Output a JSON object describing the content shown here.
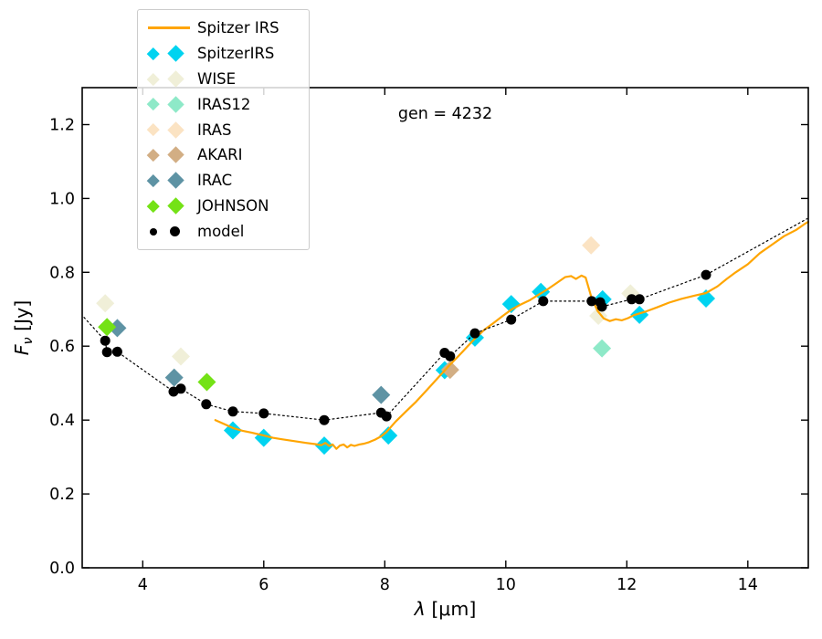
{
  "figure": {
    "annotation": "gen = 4232",
    "background": "#ffffff"
  },
  "axes": {
    "xlabel": {
      "symbol": "λ",
      "unit": " [μm]"
    },
    "ylabel": {
      "symbol": "F",
      "subscript": "ν",
      "unit": " [Jy]"
    },
    "xlim": [
      3,
      15
    ],
    "ylim": [
      0,
      1.3
    ],
    "xticks": [
      4,
      6,
      8,
      10,
      12,
      14
    ],
    "yticks": [
      0,
      0.2,
      0.4,
      0.6,
      0.8,
      1.0,
      1.2
    ],
    "ytick_labels": [
      "0.0",
      "0.2",
      "0.4",
      "0.6",
      "0.8",
      "1.0",
      "1.2"
    ]
  },
  "legend": {
    "items": [
      {
        "label": "Spitzer IRS",
        "marker": "line",
        "color": "#FFA500"
      },
      {
        "label": "SpitzerIRS",
        "marker": "diamond",
        "color": "#00D3F0"
      },
      {
        "label": "WISE",
        "marker": "diamond",
        "color": "#F0EFD8"
      },
      {
        "label": "IRAS12",
        "marker": "diamond",
        "color": "#8EE9C8"
      },
      {
        "label": "IRAS",
        "marker": "diamond",
        "color": "#FBE3C3"
      },
      {
        "label": "AKARI",
        "marker": "diamond",
        "color": "#D2AE84"
      },
      {
        "label": "IRAC",
        "marker": "diamond",
        "color": "#5E93A4"
      },
      {
        "label": "JOHNSON",
        "marker": "diamond",
        "color": "#74E216"
      },
      {
        "label": "model",
        "marker": "dot",
        "color": "#000000"
      }
    ]
  },
  "chart_data": {
    "type": "line+scatter",
    "annotation": "gen = 4232",
    "xlabel": "λ [μm]",
    "ylabel": "F_ν [Jy]",
    "xlim": [
      3,
      15
    ],
    "ylim": [
      0,
      1.3
    ],
    "grid": false,
    "legend_position": "upper left",
    "series": [
      {
        "name": "SpitzerIRS",
        "type": "scatter",
        "marker": "diamond",
        "color": "#00D3F0",
        "x": [
          5.49,
          6.0,
          7.0,
          8.06,
          8.99,
          9.49,
          10.09,
          10.58,
          11.6,
          12.21,
          13.31
        ],
        "y": [
          0.372,
          0.352,
          0.331,
          0.358,
          0.535,
          0.623,
          0.714,
          0.747,
          0.727,
          0.685,
          0.729
        ]
      },
      {
        "name": "WISE",
        "type": "scatter",
        "marker": "diamond",
        "color": "#F0EFD8",
        "x": [
          3.38,
          4.63,
          11.53,
          12.06
        ],
        "y": [
          0.716,
          0.572,
          0.682,
          0.743
        ]
      },
      {
        "name": "IRAS12",
        "type": "scatter",
        "marker": "diamond",
        "color": "#8EE9C8",
        "x": [
          11.59
        ],
        "y": [
          0.594
        ]
      },
      {
        "name": "IRAS",
        "type": "scatter",
        "marker": "diamond",
        "color": "#FBE3C3",
        "x": [
          11.41
        ],
        "y": [
          0.873
        ]
      },
      {
        "name": "AKARI",
        "type": "scatter",
        "marker": "diamond",
        "color": "#D2AE84",
        "x": [
          9.08
        ],
        "y": [
          0.536
        ]
      },
      {
        "name": "IRAC",
        "type": "scatter",
        "marker": "diamond",
        "color": "#5E93A4",
        "x": [
          3.58,
          4.52,
          7.94
        ],
        "y": [
          0.649,
          0.515,
          0.468
        ]
      },
      {
        "name": "JOHNSON",
        "type": "scatter",
        "marker": "diamond",
        "color": "#74E216",
        "x": [
          3.41,
          5.06
        ],
        "y": [
          0.652,
          0.503
        ]
      },
      {
        "name": "Spitzer IRS",
        "type": "line",
        "style": "solid",
        "color": "#FFA500",
        "linewidth": 2.2,
        "x": [
          5.2,
          5.35,
          5.5,
          5.65,
          5.8,
          6.0,
          6.15,
          6.3,
          6.5,
          6.7,
          6.85,
          6.95,
          7.02,
          7.08,
          7.14,
          7.2,
          7.26,
          7.32,
          7.38,
          7.44,
          7.5,
          7.58,
          7.66,
          7.74,
          7.84,
          7.94,
          8.03,
          8.18,
          8.35,
          8.52,
          8.7,
          8.9,
          9.05,
          9.2,
          9.35,
          9.5,
          9.65,
          9.8,
          9.95,
          10.1,
          10.25,
          10.4,
          10.55,
          10.7,
          10.85,
          10.98,
          11.08,
          11.16,
          11.25,
          11.32,
          11.42,
          11.52,
          11.62,
          11.72,
          11.82,
          11.92,
          12.02,
          12.12,
          12.3,
          12.5,
          12.7,
          12.9,
          13.1,
          13.31,
          13.5,
          13.65,
          13.8,
          14.0,
          14.2,
          14.4,
          14.6,
          14.8,
          14.95,
          15.0
        ],
        "y": [
          0.4,
          0.389,
          0.378,
          0.371,
          0.366,
          0.358,
          0.352,
          0.348,
          0.343,
          0.338,
          0.335,
          0.332,
          0.338,
          0.33,
          0.334,
          0.322,
          0.331,
          0.334,
          0.326,
          0.333,
          0.33,
          0.334,
          0.336,
          0.34,
          0.347,
          0.356,
          0.368,
          0.396,
          0.423,
          0.45,
          0.482,
          0.518,
          0.545,
          0.57,
          0.596,
          0.622,
          0.645,
          0.663,
          0.682,
          0.7,
          0.713,
          0.725,
          0.74,
          0.755,
          0.772,
          0.787,
          0.79,
          0.782,
          0.791,
          0.786,
          0.73,
          0.695,
          0.675,
          0.668,
          0.673,
          0.67,
          0.676,
          0.684,
          0.693,
          0.705,
          0.718,
          0.728,
          0.736,
          0.744,
          0.762,
          0.782,
          0.8,
          0.822,
          0.852,
          0.875,
          0.898,
          0.915,
          0.932,
          0.937
        ]
      },
      {
        "name": "model line",
        "type": "line",
        "style": "dotted",
        "color": "#000000",
        "linewidth": 1.2,
        "x": [
          3.03,
          3.38,
          3.41,
          3.58,
          4.51,
          4.63,
          5.05,
          5.49,
          6.0,
          7.0,
          7.94,
          8.03,
          8.99,
          9.08,
          9.49,
          10.09,
          10.62,
          11.42,
          11.56,
          11.59,
          12.08,
          12.21,
          13.31,
          14.98
        ],
        "y": [
          0.678,
          0.615,
          0.584,
          0.585,
          0.477,
          0.485,
          0.443,
          0.423,
          0.418,
          0.4,
          0.42,
          0.41,
          0.582,
          0.573,
          0.635,
          0.672,
          0.722,
          0.722,
          0.719,
          0.707,
          0.727,
          0.727,
          0.793,
          0.945
        ]
      },
      {
        "name": "model",
        "type": "scatter",
        "marker": "dot",
        "color": "#000000",
        "x": [
          3.38,
          3.41,
          3.58,
          4.51,
          4.63,
          5.05,
          5.49,
          6.0,
          7.0,
          7.94,
          8.03,
          8.99,
          9.08,
          9.49,
          10.09,
          10.62,
          11.42,
          11.56,
          11.59,
          12.08,
          12.21,
          13.31
        ],
        "y": [
          0.615,
          0.584,
          0.585,
          0.477,
          0.485,
          0.443,
          0.423,
          0.418,
          0.4,
          0.42,
          0.41,
          0.582,
          0.573,
          0.635,
          0.672,
          0.722,
          0.722,
          0.719,
          0.707,
          0.727,
          0.727,
          0.793
        ]
      }
    ]
  }
}
